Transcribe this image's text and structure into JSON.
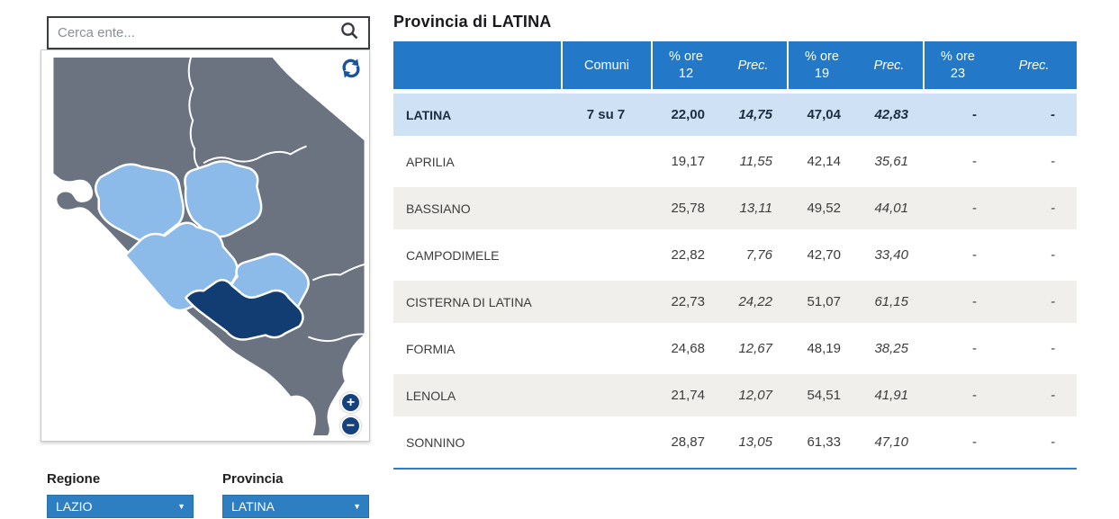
{
  "search": {
    "placeholder": "Cerca ente..."
  },
  "map": {
    "zoom_in_label": "+",
    "zoom_out_label": "−",
    "icons": {
      "search": "magnifier-icon",
      "refresh": "sync-arrows-icon",
      "zoom_in": "plus-circle-icon",
      "zoom_out": "minus-circle-icon",
      "select_caret": "caret-down-icon"
    },
    "colors": {
      "other_regions_gray": "#6b7380",
      "province_light_blue": "#8cbbe9",
      "selected_province_navy": "#123d73",
      "border_white": "#ffffff"
    }
  },
  "filters": {
    "regione": {
      "label": "Regione",
      "value": "LAZIO"
    },
    "provincia": {
      "label": "Provincia",
      "value": "LATINA"
    }
  },
  "table": {
    "title": "Provincia di LATINA",
    "accent_blue": "#2379c8",
    "selected_row_bg": "#cfe2f5",
    "alt_row_bg": "#f0efeb",
    "columns": {
      "comuni": "Comuni",
      "groups": [
        {
          "ore_line1": "% ore",
          "ore_line2": "12",
          "prec": "Prec."
        },
        {
          "ore_line1": "% ore",
          "ore_line2": "19",
          "prec": "Prec."
        },
        {
          "ore_line1": "% ore",
          "ore_line2": "23",
          "prec": "Prec."
        }
      ]
    },
    "rows": [
      {
        "name": "LATINA",
        "comuni": "7 su 7",
        "ore12": "22,00",
        "prec12": "14,75",
        "ore19": "47,04",
        "prec19": "42,83",
        "ore23": "-",
        "prec23": "-",
        "selected": true
      },
      {
        "name": "APRILIA",
        "comuni": "",
        "ore12": "19,17",
        "prec12": "11,55",
        "ore19": "42,14",
        "prec19": "35,61",
        "ore23": "-",
        "prec23": "-",
        "selected": false
      },
      {
        "name": "BASSIANO",
        "comuni": "",
        "ore12": "25,78",
        "prec12": "13,11",
        "ore19": "49,52",
        "prec19": "44,01",
        "ore23": "-",
        "prec23": "-",
        "selected": false
      },
      {
        "name": "CAMPODIMELE",
        "comuni": "",
        "ore12": "22,82",
        "prec12": "7,76",
        "ore19": "42,70",
        "prec19": "33,40",
        "ore23": "-",
        "prec23": "-",
        "selected": false
      },
      {
        "name": "CISTERNA DI LATINA",
        "comuni": "",
        "ore12": "22,73",
        "prec12": "24,22",
        "ore19": "51,07",
        "prec19": "61,15",
        "ore23": "-",
        "prec23": "-",
        "selected": false
      },
      {
        "name": "FORMIA",
        "comuni": "",
        "ore12": "24,68",
        "prec12": "12,67",
        "ore19": "48,19",
        "prec19": "38,25",
        "ore23": "-",
        "prec23": "-",
        "selected": false
      },
      {
        "name": "LENOLA",
        "comuni": "",
        "ore12": "21,74",
        "prec12": "12,07",
        "ore19": "54,51",
        "prec19": "41,91",
        "ore23": "-",
        "prec23": "-",
        "selected": false
      },
      {
        "name": "SONNINO",
        "comuni": "",
        "ore12": "28,87",
        "prec12": "13,05",
        "ore19": "61,33",
        "prec19": "47,10",
        "ore23": "-",
        "prec23": "-",
        "selected": false
      }
    ]
  }
}
